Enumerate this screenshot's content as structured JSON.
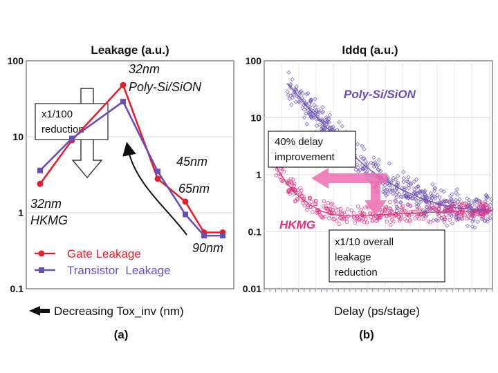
{
  "chart_data": [
    {
      "type": "line",
      "panel_label": "(a)",
      "title": "Leakage (a.u.)",
      "xlabel": "Decreasing Tox_inv (nm)",
      "yscale": "log",
      "ylim": [
        0.1,
        100
      ],
      "y_ticks": [
        "100",
        "10",
        "1",
        "0.1"
      ],
      "series": [
        {
          "name": "Gate Leakage",
          "color": "#e0202e",
          "marker": "circle",
          "x": [
            0,
            1,
            2,
            3,
            4,
            5,
            6
          ],
          "values": [
            2.4,
            9,
            48,
            2.8,
            1.4,
            0.55,
            0.55
          ]
        },
        {
          "name": "Transistor  Leakage",
          "color": "#6a4fb3",
          "marker": "square",
          "x": [
            0,
            1,
            2,
            3,
            4,
            5,
            6
          ],
          "values": [
            3.6,
            9.5,
            29,
            3.5,
            0.95,
            0.5,
            0.5
          ]
        }
      ],
      "annotations": {
        "node_32_poly_a": "32nm",
        "node_32_poly_b": "Poly-Si/SiON",
        "node_45": "45nm",
        "node_65": "65nm",
        "node_90": "90nm",
        "node_32_hkmg_a": "32nm",
        "node_32_hkmg_b": "HKMG",
        "reduction_box_a": "x1/100",
        "reduction_box_b": "reduction"
      }
    },
    {
      "type": "scatter",
      "panel_label": "(b)",
      "title": "Iddq (a.u.)",
      "xlabel": "Delay (ps/stage)",
      "yscale": "log",
      "ylim": [
        0.01,
        100
      ],
      "y_ticks": [
        "100",
        "10",
        "1",
        "0.1",
        "0.01"
      ],
      "series": [
        {
          "name": "Poly-Si/SiON",
          "color": "#6a4fb3",
          "x": [
            0.1,
            0.15,
            0.2,
            0.25,
            0.3,
            0.35,
            0.4,
            0.45,
            0.5,
            0.55,
            0.6,
            0.65,
            0.7,
            0.75,
            0.8,
            0.85,
            0.9,
            0.95,
            1.0
          ],
          "values": [
            40,
            24,
            14,
            8.5,
            5.2,
            3.2,
            2.0,
            1.35,
            0.95,
            0.72,
            0.55,
            0.45,
            0.37,
            0.32,
            0.28,
            0.26,
            0.25,
            0.24,
            0.23
          ]
        },
        {
          "name": "HKMG",
          "color": "#e0307f",
          "x": [
            0.05,
            0.1,
            0.15,
            0.2,
            0.25,
            0.3,
            0.35,
            0.4,
            0.45,
            0.5,
            0.55,
            0.6,
            0.65,
            0.7,
            0.75,
            0.8,
            0.85,
            0.9,
            0.95,
            1.0
          ],
          "values": [
            1.4,
            0.7,
            0.42,
            0.3,
            0.23,
            0.2,
            0.19,
            0.19,
            0.19,
            0.2,
            0.2,
            0.21,
            0.21,
            0.22,
            0.22,
            0.22,
            0.23,
            0.23,
            0.23,
            0.24
          ]
        }
      ],
      "annotations": {
        "delay_box_a": "40% delay",
        "delay_box_b": "improvement",
        "leak_box_a": "x1/10 overall",
        "leak_box_b": "leakage",
        "leak_box_c": "reduction"
      }
    }
  ]
}
